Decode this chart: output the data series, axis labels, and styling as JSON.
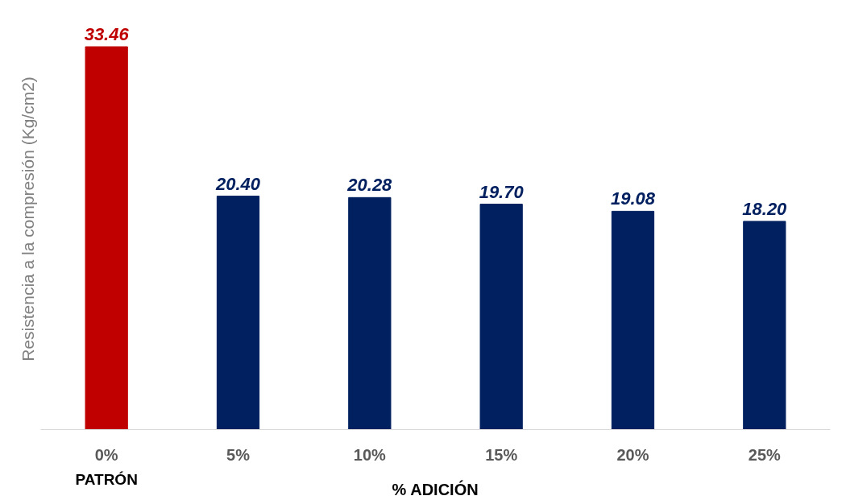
{
  "chart_data": {
    "type": "bar",
    "xlabel": "% ADICIÓN",
    "ylabel": "Resistencia a la compresión (Kg/cm2)",
    "categories": [
      "0%",
      "5%",
      "10%",
      "15%",
      "20%",
      "25%"
    ],
    "values": [
      33.46,
      20.4,
      20.28,
      19.7,
      19.08,
      18.2
    ],
    "colors": [
      "#c00000",
      "#002060",
      "#002060",
      "#002060",
      "#002060",
      "#002060"
    ],
    "value_labels": [
      "33.46",
      "20.40",
      "20.28",
      "19.70",
      "19.08",
      "18.20"
    ],
    "annotations": [
      "PATRÓN"
    ]
  }
}
